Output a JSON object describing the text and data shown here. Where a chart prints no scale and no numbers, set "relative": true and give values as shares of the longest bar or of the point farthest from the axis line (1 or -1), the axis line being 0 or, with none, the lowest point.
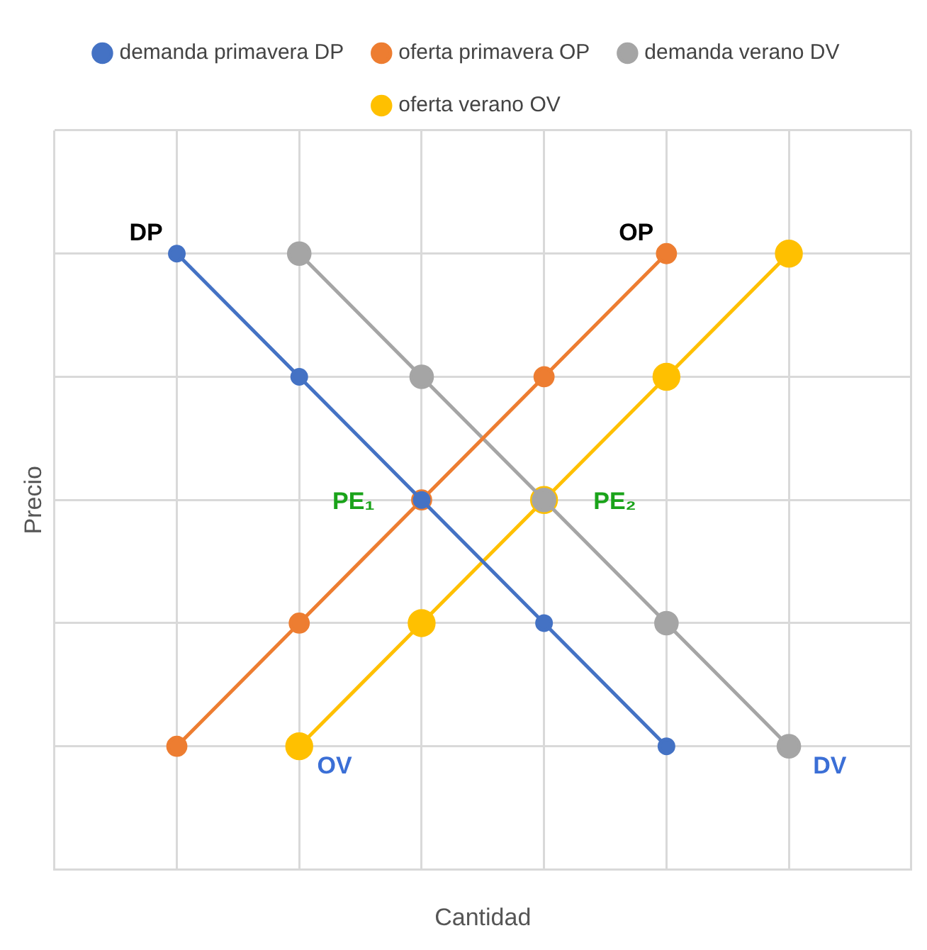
{
  "chart_data": {
    "type": "line",
    "xlabel": "Cantidad",
    "ylabel": "Precio",
    "relative": true,
    "grid": true,
    "legend": "top",
    "marker": "circle",
    "categories": [
      null,
      null,
      null,
      null,
      null,
      null,
      null,
      null
    ],
    "series": [
      {
        "name": "demanda primavera DP",
        "color": "#4472c4",
        "values": [
          null,
          1,
          0.8,
          0.6,
          0.4,
          0.2,
          null,
          null
        ]
      },
      {
        "name": "oferta primavera OP",
        "color": "#ed7d31",
        "values": [
          null,
          0.2,
          0.4,
          0.6,
          0.8,
          1,
          null,
          null
        ]
      },
      {
        "name": "demanda verano DV",
        "color": "#a5a5a5",
        "values": [
          null,
          null,
          1,
          0.8,
          0.6,
          0.4,
          0.2,
          null
        ]
      },
      {
        "name": "oferta verano OV",
        "color": "#ffc000",
        "values": [
          null,
          null,
          0.2,
          0.4,
          0.6,
          0.8,
          1,
          null
        ]
      }
    ],
    "annotations": [
      "DP",
      "OP",
      "PE₁",
      "PE₂",
      "OV",
      "DV"
    ]
  }
}
